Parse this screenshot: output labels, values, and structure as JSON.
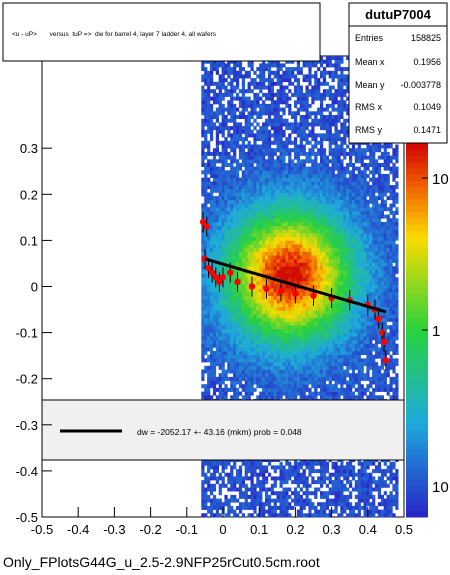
{
  "title_box": {
    "text": "<u - uP>       versus  tuP =>  dw for barrel 4, layer 7 ladder 4, all wafers"
  },
  "stats": {
    "name": "dutuP7004",
    "rows": [
      {
        "label": "Entries",
        "value": "158825"
      },
      {
        "label": "Mean x",
        "value": "0.1956"
      },
      {
        "label": "Mean y",
        "value": "-0.003778"
      },
      {
        "label": "RMS x",
        "value": "0.1049"
      },
      {
        "label": "RMS y",
        "value": "0.1471"
      }
    ]
  },
  "fit_legend": {
    "text": "dw = -2052.17 +- 43.16 (mkm) prob = 0.048"
  },
  "footer": {
    "text": "Only_FPlotsG44G_u_2.5-2.9NFP25rCut0.5cm.root"
  },
  "chart_data": {
    "type": "heatmap",
    "xlim": [
      -0.5,
      0.5
    ],
    "ylim": [
      -0.5,
      0.5
    ],
    "x_ticks": [
      "-0.5",
      "-0.4",
      "-0.3",
      "-0.2",
      "-0.1",
      "0",
      "0.1",
      "0.2",
      "0.3",
      "0.4",
      "0.5"
    ],
    "y_ticks": [
      "-0.5",
      "-0.4",
      "-0.3",
      "-0.2",
      "-0.1",
      "0",
      "0.1",
      "0.2",
      "0.3"
    ],
    "z_ticks": [
      "1",
      "10"
    ],
    "scatter_extent": {
      "x": [
        -0.06,
        0.48
      ],
      "y": [
        -0.5,
        0.5
      ]
    },
    "dense_center": {
      "x": 0.18,
      "y": 0.02
    },
    "profile_points": [
      {
        "x": -0.055,
        "y": 0.14
      },
      {
        "x": -0.05,
        "y": 0.06
      },
      {
        "x": -0.045,
        "y": 0.13
      },
      {
        "x": -0.04,
        "y": 0.04
      },
      {
        "x": -0.03,
        "y": 0.03
      },
      {
        "x": -0.02,
        "y": 0.02
      },
      {
        "x": -0.01,
        "y": 0.01
      },
      {
        "x": 0.0,
        "y": 0.02
      },
      {
        "x": 0.02,
        "y": 0.03
      },
      {
        "x": 0.04,
        "y": 0.01
      },
      {
        "x": 0.08,
        "y": 0.0
      },
      {
        "x": 0.12,
        "y": -0.005
      },
      {
        "x": 0.16,
        "y": -0.01
      },
      {
        "x": 0.2,
        "y": -0.015
      },
      {
        "x": 0.25,
        "y": -0.02
      },
      {
        "x": 0.3,
        "y": -0.025
      },
      {
        "x": 0.35,
        "y": -0.03
      },
      {
        "x": 0.4,
        "y": -0.04
      },
      {
        "x": 0.42,
        "y": -0.05
      },
      {
        "x": 0.43,
        "y": -0.07
      },
      {
        "x": 0.44,
        "y": -0.1
      },
      {
        "x": 0.445,
        "y": -0.12
      },
      {
        "x": 0.45,
        "y": -0.16
      }
    ],
    "fit_line": {
      "x": [
        -0.05,
        0.45
      ],
      "y": [
        0.06,
        -0.055
      ]
    },
    "colors": {
      "low": "#2233cc",
      "mid": "#22cc44",
      "high": "#ffdd00",
      "peak": "#dd1100",
      "marker": "#ff0000",
      "fit": "#000000"
    }
  }
}
